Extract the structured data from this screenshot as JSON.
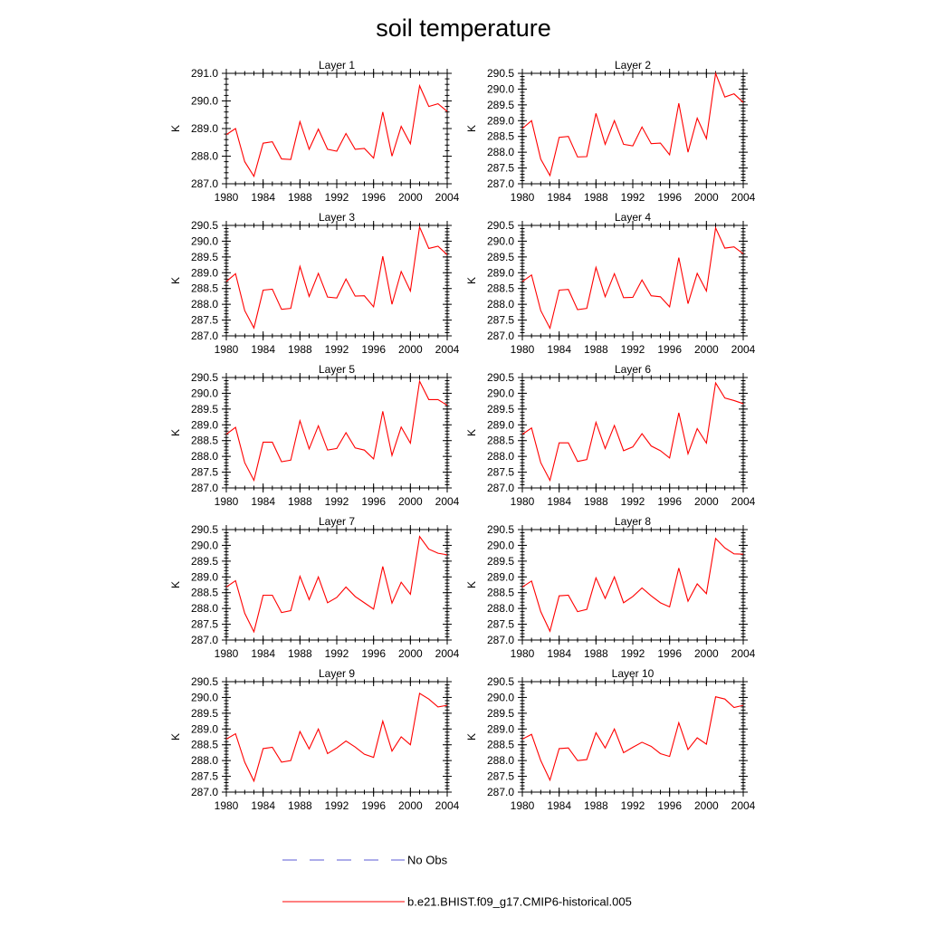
{
  "figure": {
    "title": "soil temperature",
    "legend": {
      "obs_label": "No Obs",
      "model_label": "b.e21.BHIST.f09_g17.CMIP6-historical.005",
      "obs_color": "#5b5bd6",
      "model_color": "#ff0000"
    }
  },
  "chart_data": [
    {
      "type": "line",
      "title": "Layer 1",
      "ylabel": "K",
      "xlim": [
        1980,
        2004
      ],
      "ylim": [
        287.0,
        291.0
      ],
      "yticks": [
        "287.0",
        "288.0",
        "289.0",
        "290.0",
        "291.0"
      ],
      "xticks": [
        "1980",
        "1984",
        "1988",
        "1992",
        "1996",
        "2000",
        "2004"
      ],
      "x": [
        1980,
        1981,
        1982,
        1983,
        1984,
        1985,
        1986,
        1987,
        1988,
        1989,
        1990,
        1991,
        1992,
        1993,
        1994,
        1995,
        1996,
        1997,
        1998,
        1999,
        2000,
        2001,
        2002,
        2003,
        2004
      ],
      "series": [
        {
          "name": "b.e21.BHIST.f09_g17.CMIP6-historical.005",
          "values": [
            288.78,
            289.0,
            287.8,
            287.27,
            288.47,
            288.52,
            287.9,
            287.88,
            289.25,
            288.25,
            288.98,
            288.25,
            288.18,
            288.82,
            288.25,
            288.28,
            287.93,
            289.6,
            288.0,
            289.08,
            288.45,
            290.55,
            289.8,
            289.9,
            289.62
          ]
        }
      ]
    },
    {
      "type": "line",
      "title": "Layer 2",
      "ylabel": "K",
      "xlim": [
        1980,
        2004
      ],
      "ylim": [
        287.0,
        290.5
      ],
      "yticks": [
        "287.0",
        "287.5",
        "288.0",
        "288.5",
        "289.0",
        "289.5",
        "290.0",
        "290.5"
      ],
      "xticks": [
        "1980",
        "1984",
        "1988",
        "1992",
        "1996",
        "2000",
        "2004"
      ],
      "x": [
        1980,
        1981,
        1982,
        1983,
        1984,
        1985,
        1986,
        1987,
        1988,
        1989,
        1990,
        1991,
        1992,
        1993,
        1994,
        1995,
        1996,
        1997,
        1998,
        1999,
        2000,
        2001,
        2002,
        2003,
        2004
      ],
      "series": [
        {
          "name": "b.e21.BHIST.f09_g17.CMIP6-historical.005",
          "values": [
            288.75,
            289.0,
            287.78,
            287.26,
            288.47,
            288.5,
            287.85,
            287.86,
            289.23,
            288.25,
            289.0,
            288.25,
            288.2,
            288.8,
            288.27,
            288.29,
            287.92,
            289.55,
            288.0,
            289.08,
            288.43,
            290.5,
            289.75,
            289.85,
            289.58
          ]
        }
      ]
    },
    {
      "type": "line",
      "title": "Layer 3",
      "ylabel": "K",
      "xlim": [
        1980,
        2004
      ],
      "ylim": [
        287.0,
        290.5
      ],
      "yticks": [
        "287.0",
        "287.5",
        "288.0",
        "288.5",
        "289.0",
        "289.5",
        "290.0",
        "290.5"
      ],
      "xticks": [
        "1980",
        "1984",
        "1988",
        "1992",
        "1996",
        "2000",
        "2004"
      ],
      "x": [
        1980,
        1981,
        1982,
        1983,
        1984,
        1985,
        1986,
        1987,
        1988,
        1989,
        1990,
        1991,
        1992,
        1993,
        1994,
        1995,
        1996,
        1997,
        1998,
        1999,
        2000,
        2001,
        2002,
        2003,
        2004
      ],
      "series": [
        {
          "name": "b.e21.BHIST.f09_g17.CMIP6-historical.005",
          "values": [
            288.72,
            288.97,
            287.8,
            287.25,
            288.45,
            288.48,
            287.84,
            287.87,
            289.2,
            288.25,
            288.98,
            288.23,
            288.2,
            288.8,
            288.26,
            288.27,
            287.92,
            289.52,
            288.0,
            289.04,
            288.42,
            290.45,
            289.77,
            289.84,
            289.57
          ]
        }
      ]
    },
    {
      "type": "line",
      "title": "Layer 4",
      "ylabel": "K",
      "xlim": [
        1980,
        2004
      ],
      "ylim": [
        287.0,
        290.5
      ],
      "yticks": [
        "287.0",
        "287.5",
        "288.0",
        "288.5",
        "289.0",
        "289.5",
        "290.0",
        "290.5"
      ],
      "xticks": [
        "1980",
        "1984",
        "1988",
        "1992",
        "1996",
        "2000",
        "2004"
      ],
      "x": [
        1980,
        1981,
        1982,
        1983,
        1984,
        1985,
        1986,
        1987,
        1988,
        1989,
        1990,
        1991,
        1992,
        1993,
        1994,
        1995,
        1996,
        1997,
        1998,
        1999,
        2000,
        2001,
        2002,
        2003,
        2004
      ],
      "series": [
        {
          "name": "b.e21.BHIST.f09_g17.CMIP6-historical.005",
          "values": [
            288.72,
            288.93,
            287.8,
            287.24,
            288.45,
            288.47,
            287.83,
            287.87,
            289.17,
            288.24,
            288.97,
            288.21,
            288.22,
            288.77,
            288.27,
            288.24,
            287.92,
            289.48,
            288.02,
            288.98,
            288.42,
            290.42,
            289.78,
            289.82,
            289.6
          ]
        }
      ]
    },
    {
      "type": "line",
      "title": "Layer 5",
      "ylabel": "K",
      "xlim": [
        1980,
        2004
      ],
      "ylim": [
        287.0,
        290.5
      ],
      "yticks": [
        "287.0",
        "287.5",
        "288.0",
        "288.5",
        "289.0",
        "289.5",
        "290.0",
        "290.5"
      ],
      "xticks": [
        "1980",
        "1984",
        "1988",
        "1992",
        "1996",
        "2000",
        "2004"
      ],
      "x": [
        1980,
        1981,
        1982,
        1983,
        1984,
        1985,
        1986,
        1987,
        1988,
        1989,
        1990,
        1991,
        1992,
        1993,
        1994,
        1995,
        1996,
        1997,
        1998,
        1999,
        2000,
        2001,
        2002,
        2003,
        2004
      ],
      "series": [
        {
          "name": "b.e21.BHIST.f09_g17.CMIP6-historical.005",
          "values": [
            288.7,
            288.92,
            287.8,
            287.24,
            288.45,
            288.45,
            287.83,
            287.88,
            289.13,
            288.24,
            288.97,
            288.2,
            288.25,
            288.75,
            288.27,
            288.2,
            287.92,
            289.43,
            288.03,
            288.93,
            288.42,
            290.38,
            289.8,
            289.8,
            289.62
          ]
        }
      ]
    },
    {
      "type": "line",
      "title": "Layer 6",
      "ylabel": "K",
      "xlim": [
        1980,
        2004
      ],
      "ylim": [
        287.0,
        290.5
      ],
      "yticks": [
        "287.0",
        "287.5",
        "288.0",
        "288.5",
        "289.0",
        "289.5",
        "290.0",
        "290.5"
      ],
      "xticks": [
        "1980",
        "1984",
        "1988",
        "1992",
        "1996",
        "2000",
        "2004"
      ],
      "x": [
        1980,
        1981,
        1982,
        1983,
        1984,
        1985,
        1986,
        1987,
        1988,
        1989,
        1990,
        1991,
        1992,
        1993,
        1994,
        1995,
        1996,
        1997,
        1998,
        1999,
        2000,
        2001,
        2002,
        2003,
        2004
      ],
      "series": [
        {
          "name": "b.e21.BHIST.f09_g17.CMIP6-historical.005",
          "values": [
            288.7,
            288.9,
            287.8,
            287.24,
            288.43,
            288.43,
            287.84,
            287.9,
            289.08,
            288.25,
            288.98,
            288.18,
            288.3,
            288.72,
            288.33,
            288.18,
            287.95,
            289.38,
            288.08,
            288.88,
            288.42,
            290.33,
            289.85,
            289.77,
            289.67
          ]
        }
      ]
    },
    {
      "type": "line",
      "title": "Layer 7",
      "ylabel": "K",
      "xlim": [
        1980,
        2004
      ],
      "ylim": [
        287.0,
        290.5
      ],
      "yticks": [
        "287.0",
        "287.5",
        "288.0",
        "288.5",
        "289.0",
        "289.5",
        "290.0",
        "290.5"
      ],
      "xticks": [
        "1980",
        "1984",
        "1988",
        "1992",
        "1996",
        "2000",
        "2004"
      ],
      "x": [
        1980,
        1981,
        1982,
        1983,
        1984,
        1985,
        1986,
        1987,
        1988,
        1989,
        1990,
        1991,
        1992,
        1993,
        1994,
        1995,
        1996,
        1997,
        1998,
        1999,
        2000,
        2001,
        2002,
        2003,
        2004
      ],
      "series": [
        {
          "name": "b.e21.BHIST.f09_g17.CMIP6-historical.005",
          "values": [
            288.68,
            288.88,
            287.85,
            287.26,
            288.42,
            288.42,
            287.87,
            287.93,
            289.02,
            288.28,
            289.0,
            288.18,
            288.35,
            288.68,
            288.38,
            288.18,
            287.98,
            289.33,
            288.17,
            288.83,
            288.45,
            290.28,
            289.88,
            289.75,
            289.7
          ]
        }
      ]
    },
    {
      "type": "line",
      "title": "Layer 8",
      "ylabel": "K",
      "xlim": [
        1980,
        2004
      ],
      "ylim": [
        287.0,
        290.5
      ],
      "yticks": [
        "287.0",
        "287.5",
        "288.0",
        "288.5",
        "289.0",
        "289.5",
        "290.0",
        "290.5"
      ],
      "xticks": [
        "1980",
        "1984",
        "1988",
        "1992",
        "1996",
        "2000",
        "2004"
      ],
      "x": [
        1980,
        1981,
        1982,
        1983,
        1984,
        1985,
        1986,
        1987,
        1988,
        1989,
        1990,
        1991,
        1992,
        1993,
        1994,
        1995,
        1996,
        1997,
        1998,
        1999,
        2000,
        2001,
        2002,
        2003,
        2004
      ],
      "series": [
        {
          "name": "b.e21.BHIST.f09_g17.CMIP6-historical.005",
          "values": [
            288.68,
            288.87,
            287.9,
            287.28,
            288.4,
            288.42,
            287.9,
            287.97,
            288.97,
            288.32,
            289.0,
            288.18,
            288.38,
            288.65,
            288.4,
            288.18,
            288.05,
            289.28,
            288.23,
            288.78,
            288.47,
            290.22,
            289.92,
            289.73,
            289.72
          ]
        }
      ]
    },
    {
      "type": "line",
      "title": "Layer 9",
      "ylabel": "K",
      "xlim": [
        1980,
        2004
      ],
      "ylim": [
        287.0,
        290.5
      ],
      "yticks": [
        "287.0",
        "287.5",
        "288.0",
        "288.5",
        "289.0",
        "289.5",
        "290.0",
        "290.5"
      ],
      "xticks": [
        "1980",
        "1984",
        "1988",
        "1992",
        "1996",
        "2000",
        "2004"
      ],
      "x": [
        1980,
        1981,
        1982,
        1983,
        1984,
        1985,
        1986,
        1987,
        1988,
        1989,
        1990,
        1991,
        1992,
        1993,
        1994,
        1995,
        1996,
        1997,
        1998,
        1999,
        2000,
        2001,
        2002,
        2003,
        2004
      ],
      "series": [
        {
          "name": "b.e21.BHIST.f09_g17.CMIP6-historical.005",
          "values": [
            288.68,
            288.85,
            287.95,
            287.35,
            288.38,
            288.42,
            287.95,
            288.0,
            288.92,
            288.37,
            289.0,
            288.22,
            288.4,
            288.62,
            288.43,
            288.2,
            288.1,
            289.25,
            288.3,
            288.75,
            288.5,
            290.13,
            289.95,
            289.7,
            289.75
          ]
        }
      ]
    },
    {
      "type": "line",
      "title": "Layer 10",
      "ylabel": "K",
      "xlim": [
        1980,
        2004
      ],
      "ylim": [
        287.0,
        290.5
      ],
      "yticks": [
        "287.0",
        "287.5",
        "288.0",
        "288.5",
        "289.0",
        "289.5",
        "290.0",
        "290.5"
      ],
      "xticks": [
        "1980",
        "1984",
        "1988",
        "1992",
        "1996",
        "2000",
        "2004"
      ],
      "x": [
        1980,
        1981,
        1982,
        1983,
        1984,
        1985,
        1986,
        1987,
        1988,
        1989,
        1990,
        1991,
        1992,
        1993,
        1994,
        1995,
        1996,
        1997,
        1998,
        1999,
        2000,
        2001,
        2002,
        2003,
        2004
      ],
      "series": [
        {
          "name": "b.e21.BHIST.f09_g17.CMIP6-historical.005",
          "values": [
            288.68,
            288.83,
            288.0,
            287.38,
            288.38,
            288.4,
            288.0,
            288.03,
            288.88,
            288.4,
            289.0,
            288.25,
            288.42,
            288.58,
            288.45,
            288.22,
            288.13,
            289.2,
            288.35,
            288.72,
            288.52,
            290.02,
            289.95,
            289.68,
            289.75
          ]
        }
      ]
    }
  ]
}
